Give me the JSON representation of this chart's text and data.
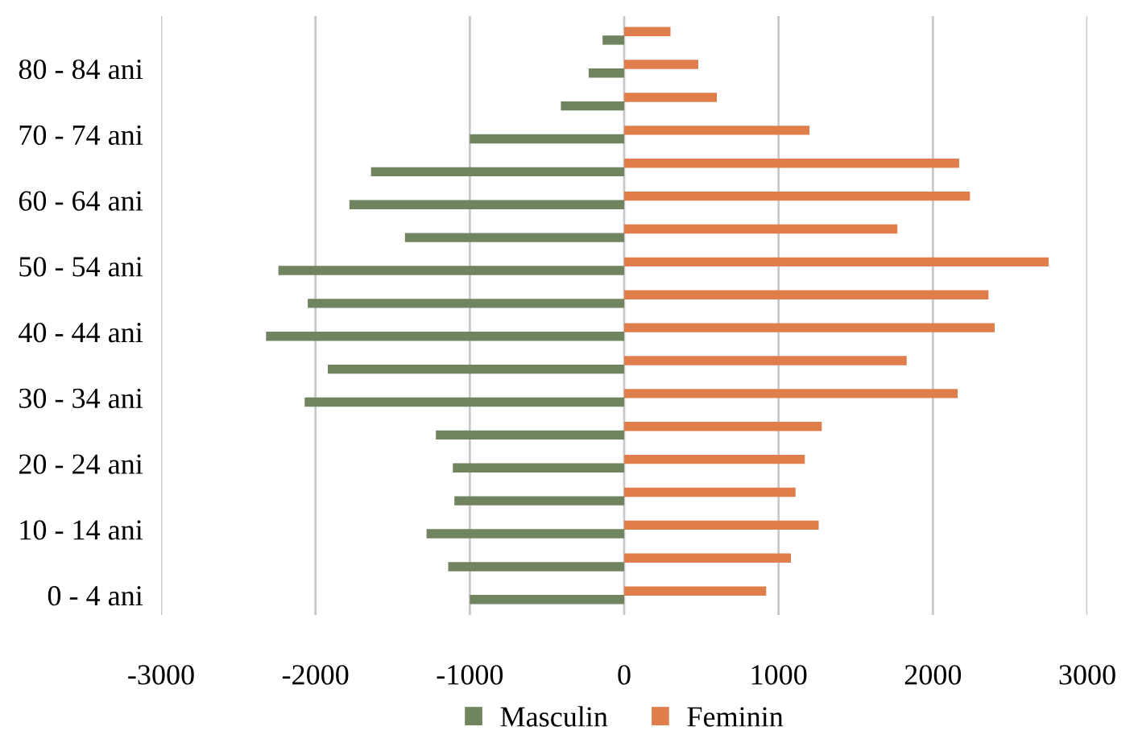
{
  "chart_data": {
    "type": "bar",
    "orientation": "horizontal",
    "categories": [
      null,
      "80 - 84 ani",
      null,
      "70 - 74 ani",
      null,
      "60 - 64 ani",
      null,
      "50 - 54 ani",
      null,
      "40 - 44 ani",
      null,
      "30 - 34 ani",
      null,
      "20 - 24 ani",
      null,
      "10 - 14 ani",
      null,
      "0 - 4 ani"
    ],
    "series": [
      {
        "name": "Masculin",
        "color": "#70845f",
        "values": [
          -140,
          -230,
          -410,
          -1000,
          -1640,
          -1780,
          -1420,
          -2240,
          -2050,
          -2320,
          -1920,
          -2070,
          -1220,
          -1110,
          -1100,
          -1280,
          -1140,
          -1000
        ]
      },
      {
        "name": "Feminin",
        "color": "#e07e4b",
        "values": [
          300,
          480,
          600,
          1200,
          2170,
          2240,
          1770,
          2750,
          2360,
          2400,
          1830,
          2160,
          1280,
          1170,
          1110,
          1260,
          1080,
          920
        ]
      }
    ],
    "xlim": [
      -3000,
      3000
    ],
    "xticks": [
      -3000,
      -2000,
      -1000,
      0,
      1000,
      2000,
      3000
    ],
    "grid": "x",
    "legend": "bottom"
  }
}
